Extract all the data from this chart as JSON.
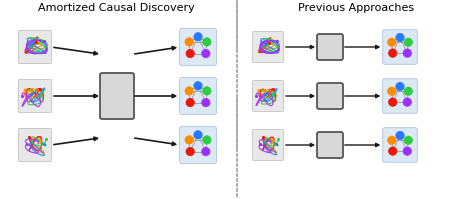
{
  "title_left": "Amortized Causal Discovery",
  "title_right": "Previous Approaches",
  "bg_color": "#ffffff",
  "node_colors_top": "#2979FF",
  "node_colors_orange": "#FF8C00",
  "node_colors_green": "#2ECC40",
  "node_colors_red": "#E8170A",
  "node_colors_purple": "#9B30FF",
  "graph_bg": "#DCE9F5",
  "ts_bg": "#E8E8E8",
  "box_face": "#D8D8D8",
  "box_edge": "#555555",
  "arrow_color": "#1a1a1a",
  "sep_color": "#999999",
  "curve_colors": [
    "#FF8C00",
    "#E8170A",
    "#2979FF",
    "#2ECC40",
    "#9B30FF"
  ]
}
